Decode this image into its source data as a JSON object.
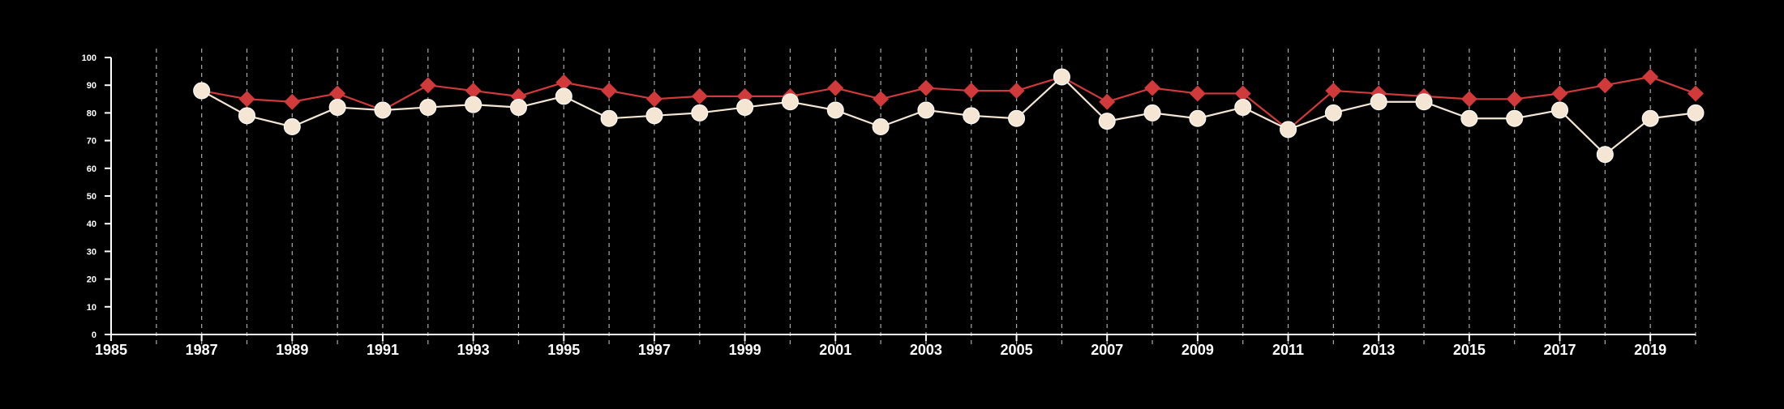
{
  "chart_data": {
    "type": "line",
    "x": [
      1987,
      1988,
      1989,
      1990,
      1991,
      1992,
      1993,
      1994,
      1995,
      1996,
      1997,
      1998,
      1999,
      2000,
      2001,
      2002,
      2003,
      2004,
      2005,
      2006,
      2007,
      2008,
      2009,
      2010,
      2011,
      2012,
      2013,
      2014,
      2015,
      2016,
      2017,
      2018,
      2019,
      2020
    ],
    "series": [
      {
        "marker": "diamond",
        "color": "#d03a3a",
        "values": [
          88,
          85,
          84,
          87,
          81,
          90,
          88,
          86,
          91,
          88,
          85,
          86,
          86,
          86,
          89,
          85,
          89,
          88,
          88,
          93,
          84,
          89,
          87,
          87,
          74,
          88,
          87,
          86,
          85,
          85,
          87,
          90,
          93,
          87
        ]
      },
      {
        "marker": "circle",
        "color": "#f5e6d3",
        "values": [
          88,
          79,
          75,
          82,
          81,
          82,
          83,
          82,
          86,
          78,
          79,
          80,
          82,
          84,
          81,
          75,
          81,
          79,
          78,
          93,
          77,
          80,
          78,
          82,
          74,
          80,
          84,
          84,
          78,
          78,
          81,
          65,
          78,
          80
        ]
      }
    ],
    "xlim": [
      1985,
      2020
    ],
    "ylim": [
      0,
      100
    ],
    "x_ticks": [
      1985,
      1987,
      1989,
      1991,
      1993,
      1995,
      1997,
      1999,
      2001,
      2003,
      2005,
      2007,
      2009,
      2011,
      2013,
      2015,
      2017,
      2019
    ],
    "x_tick_labels": [
      "1985",
      "1987",
      "1989",
      "1991",
      "1993",
      "1995",
      "1997",
      "1999",
      "2001",
      "2003",
      "2005",
      "2007",
      "2009",
      "2011",
      "2013",
      "2015",
      "2017",
      "2019"
    ],
    "y_ticks": [
      0,
      10,
      20,
      30,
      40,
      50,
      60,
      70,
      80,
      90,
      100
    ],
    "y_tick_labels": [
      "0",
      "10",
      "20",
      "30",
      "40",
      "50",
      "60",
      "70",
      "80",
      "90",
      "100"
    ],
    "vertical_gridlines": "every year, dashed",
    "axis_color": "#ffffff",
    "grid_color": "#aaaaaa",
    "background": "#000000"
  }
}
